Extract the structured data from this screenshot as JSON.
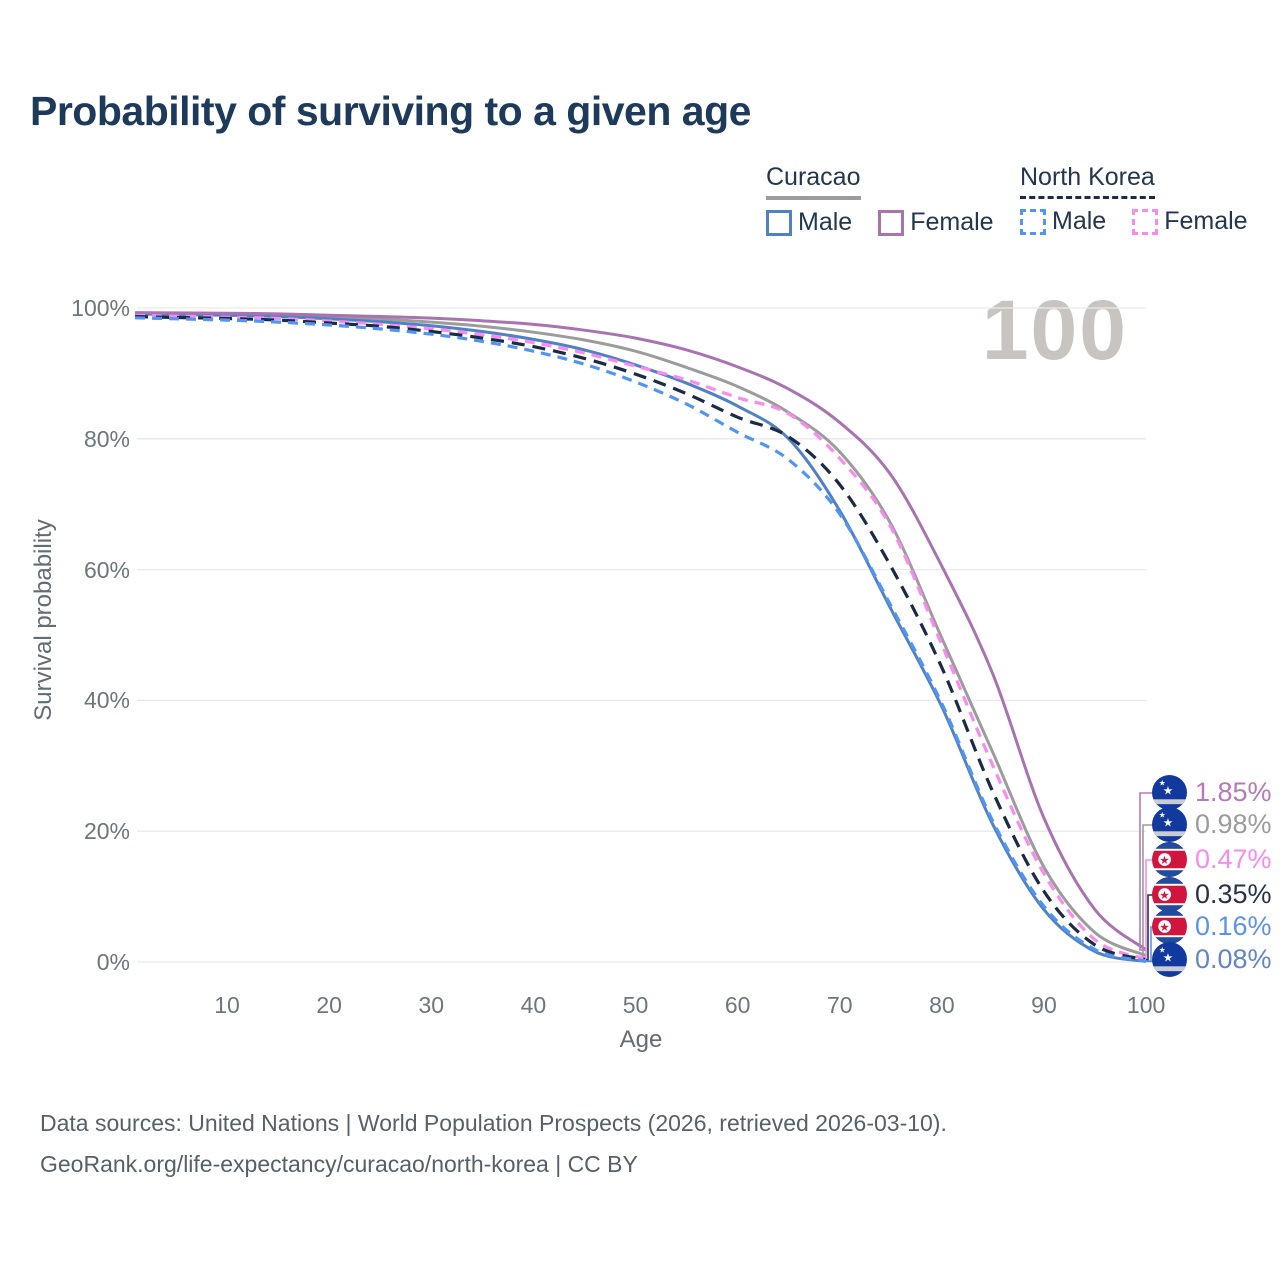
{
  "title": "Probability of surviving to a given age",
  "watermark": "100",
  "legend": {
    "groups": [
      {
        "label": "Curacao",
        "underline_color": "#9c9c9c",
        "underline_style": "solid",
        "items": [
          {
            "label": "Male",
            "color": "#5081c5",
            "style": "solid"
          },
          {
            "label": "Female",
            "color": "#a972b0",
            "style": "solid"
          }
        ]
      },
      {
        "label": "North Korea",
        "underline_color": "#1b2b45",
        "underline_style": "dashed",
        "items": [
          {
            "label": "Male",
            "color": "#5095f2",
            "style": "dashed"
          },
          {
            "label": "Female",
            "color": "#f98bef",
            "style": "dashed"
          }
        ]
      }
    ]
  },
  "chart_data": {
    "type": "line",
    "xlabel": "Age",
    "ylabel": "Survival probability",
    "xlim": [
      0,
      100
    ],
    "ylim": [
      0,
      100
    ],
    "grid": "horizontal",
    "legend_position": "top-right",
    "xticks": [
      10,
      20,
      30,
      40,
      50,
      60,
      70,
      80,
      90,
      100
    ],
    "yticks": [
      {
        "value": 0,
        "label": "0%"
      },
      {
        "value": 20,
        "label": "20%"
      },
      {
        "value": 40,
        "label": "40%"
      },
      {
        "value": 60,
        "label": "60%"
      },
      {
        "value": 80,
        "label": "80%"
      },
      {
        "value": 100,
        "label": "100%"
      }
    ],
    "x": [
      1,
      5,
      10,
      15,
      20,
      25,
      30,
      35,
      40,
      45,
      50,
      55,
      60,
      65,
      70,
      75,
      80,
      85,
      90,
      95,
      100
    ],
    "series": [
      {
        "id": "curacao-female",
        "name": "Curacao Female",
        "country": "Curacao",
        "sex": "Female",
        "color": "#a972b0",
        "dash": "none",
        "width": 3,
        "values": [
          99.3,
          99.25,
          99.2,
          99.1,
          98.9,
          98.7,
          98.45,
          98.05,
          97.5,
          96.6,
          95.4,
          93.6,
          91.0,
          87.6,
          82.5,
          74.5,
          60.5,
          44.0,
          22.0,
          8.0,
          1.85
        ]
      },
      {
        "id": "curacao-both",
        "name": "Curacao Both sexes",
        "country": "Curacao",
        "sex": "Both",
        "color": "#9c9c9c",
        "dash": "none",
        "width": 3,
        "values": [
          99.2,
          99.1,
          99.0,
          98.85,
          98.6,
          98.3,
          97.85,
          97.2,
          96.3,
          95.1,
          93.4,
          90.9,
          88.0,
          84.0,
          78.0,
          67.0,
          49.5,
          32.0,
          14.5,
          4.5,
          0.98
        ]
      },
      {
        "id": "curacao-male",
        "name": "Curacao Male",
        "country": "Curacao",
        "sex": "Male",
        "color": "#5081c5",
        "dash": "none",
        "width": 3,
        "values": [
          99.1,
          99.0,
          98.9,
          98.7,
          98.35,
          97.9,
          97.3,
          96.4,
          95.2,
          93.6,
          91.3,
          88.5,
          85.0,
          80.0,
          69.0,
          54.0,
          39.0,
          21.0,
          8.0,
          1.6,
          0.08
        ]
      },
      {
        "id": "nk-female",
        "name": "North Korea Female",
        "country": "North Korea",
        "sex": "Female",
        "color": "#f98bef",
        "dash": "10 7",
        "width": 3.2,
        "values": [
          98.85,
          98.75,
          98.6,
          98.4,
          98.0,
          97.5,
          96.8,
          95.9,
          94.7,
          93.1,
          91.1,
          89.0,
          86.3,
          83.8,
          77.0,
          66.5,
          48.5,
          30.0,
          13.5,
          3.4,
          0.47
        ]
      },
      {
        "id": "nk-both",
        "name": "North Korea Both sexes",
        "country": "North Korea",
        "sex": "Both",
        "color": "#1b2b45",
        "dash": "13 8",
        "width": 3.2,
        "values": [
          98.7,
          98.55,
          98.4,
          98.15,
          97.7,
          97.2,
          96.4,
          95.4,
          94.1,
          92.3,
          89.9,
          86.9,
          83.3,
          80.3,
          73.0,
          60.5,
          45.0,
          26.0,
          10.8,
          2.6,
          0.35
        ]
      },
      {
        "id": "nk-male",
        "name": "North Korea Male",
        "country": "North Korea",
        "sex": "Male",
        "color": "#5095f2",
        "dash": "10 7",
        "width": 3.2,
        "values": [
          98.5,
          98.35,
          98.15,
          97.85,
          97.4,
          96.8,
          96.0,
          94.9,
          93.4,
          91.4,
          88.7,
          85.3,
          81.0,
          76.8,
          68.5,
          54.5,
          39.5,
          21.5,
          8.5,
          1.9,
          0.16
        ]
      }
    ],
    "end_labels": [
      {
        "value": "1.85%",
        "series": "curacao-female",
        "flag": "curacao",
        "color": "#b878ba"
      },
      {
        "value": "0.98%",
        "series": "curacao-both",
        "flag": "curacao",
        "color": "#9b9b9b"
      },
      {
        "value": "0.47%",
        "series": "nk-female",
        "flag": "north-korea",
        "color": "#f98bef"
      },
      {
        "value": "0.35%",
        "series": "nk-both",
        "flag": "north-korea",
        "color": "#263349"
      },
      {
        "value": "0.16%",
        "series": "nk-male",
        "flag": "north-korea",
        "color": "#5b93e8"
      },
      {
        "value": "0.08%",
        "series": "curacao-male",
        "flag": "curacao",
        "color": "#6186c2"
      }
    ],
    "annotations": [
      {
        "text": "100",
        "position": "top-right",
        "color": "#c8c4c1"
      }
    ]
  },
  "flags": {
    "curacao": {
      "field": "#123a9e",
      "stripe": "#c9ccd3",
      "star": "#ffffff"
    },
    "north_korea": {
      "blue": "#1e4ca0",
      "red": "#d2153e",
      "white": "#ffffff"
    }
  },
  "footer": {
    "line1": "Data sources: United Nations | World Population Prospects (2026, retrieved 2026-03-10).",
    "line2": "GeoRank.org/life-expectancy/curacao/north-korea | CC BY"
  },
  "colors": {
    "title": "#1d3a5a",
    "axis_text": "#6d757d",
    "grid": "#eaeaee",
    "footer_text": "#566069",
    "watermark": "#c8c4c1"
  }
}
